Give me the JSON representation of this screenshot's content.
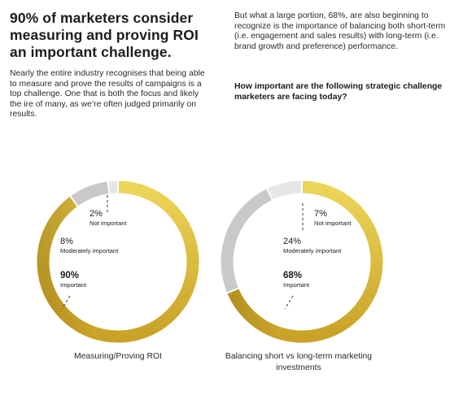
{
  "headline": "90% of marketers consider measuring and proving ROI an important challenge.",
  "left_paragraph": "Nearly the entire industry recognises that being able to measure and prove the results of campaigns is a top challenge. One that is both the focus and likely the ire of many, as we’re often judged primarily on results.",
  "right_paragraph": "But what a large portion, 68%, are also beginning to recognize is the importance of balancing both short-term (i.e. engagement and sales results) with long-term (i.e. brand growth and preference) performance.",
  "question": "How important are the following strategic challenge marketers are facing today?",
  "colors": {
    "important": "#c9a227",
    "important_light": "#ecd55a",
    "moderately": "#c9c9c9",
    "not_important": "#e6e6e6"
  },
  "chart_data": [
    {
      "type": "pie",
      "title": "",
      "caption": "Measuring/Proving ROI",
      "slices": [
        {
          "label": "Important",
          "value": 90,
          "display": "90%"
        },
        {
          "label": "Moderately important",
          "value": 8,
          "display": "8%"
        },
        {
          "label": "Not important",
          "value": 2,
          "display": "2%"
        }
      ]
    },
    {
      "type": "pie",
      "title": "",
      "caption": "Balancing short vs long-term marketing investments",
      "slices": [
        {
          "label": "Important",
          "value": 68,
          "display": "68%"
        },
        {
          "label": "Moderately important",
          "value": 24,
          "display": "24%"
        },
        {
          "label": "Not important",
          "value": 7,
          "display": "7%"
        }
      ]
    }
  ]
}
